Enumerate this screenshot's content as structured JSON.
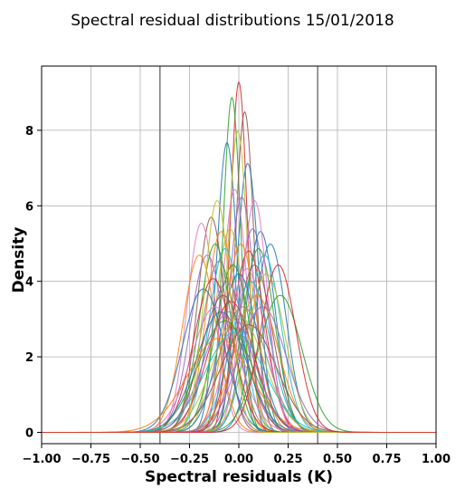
{
  "chart_data": {
    "type": "line",
    "title": "Spectral residual distributions 15/01/2018",
    "xlabel": "Spectral residuals (K)",
    "ylabel": "Density",
    "xlim": [
      -1.0,
      1.0
    ],
    "ylim": [
      -0.3,
      9.7
    ],
    "xticks": [
      "−1.00",
      "−0.75",
      "−0.50",
      "−0.25",
      "0.00",
      "0.25",
      "0.50",
      "0.75",
      "1.00"
    ],
    "yticks": [
      "0",
      "2",
      "4",
      "6",
      "8"
    ],
    "xtick_values": [
      -1.0,
      -0.75,
      -0.5,
      -0.25,
      0.0,
      0.25,
      0.5,
      0.75,
      1.0
    ],
    "ytick_values": [
      0,
      2,
      4,
      6,
      8
    ],
    "grid": true,
    "reference_lines_x": [
      -0.4,
      0.4
    ],
    "reference_line_color": "#808080",
    "series": [
      {
        "mu": 0.0,
        "sigma": 0.043,
        "color": "#d62728"
      },
      {
        "mu": -0.035,
        "sigma": 0.045,
        "color": "#2ca02c"
      },
      {
        "mu": 0.03,
        "sigma": 0.047,
        "color": "#8c564b"
      },
      {
        "mu": -0.06,
        "sigma": 0.052,
        "color": "#1f77b4"
      },
      {
        "mu": 0.045,
        "sigma": 0.056,
        "color": "#1f77b4"
      },
      {
        "mu": -0.005,
        "sigma": 0.05,
        "color": "#bcbd22"
      },
      {
        "mu": -0.02,
        "sigma": 0.062,
        "color": "#e377c2"
      },
      {
        "mu": 0.015,
        "sigma": 0.064,
        "color": "#9467bd"
      },
      {
        "mu": -0.14,
        "sigma": 0.07,
        "color": "#8c564b"
      },
      {
        "mu": -0.09,
        "sigma": 0.075,
        "color": "#ff7f0e"
      },
      {
        "mu": -0.045,
        "sigma": 0.074,
        "color": "#bcbd22"
      },
      {
        "mu": 0.07,
        "sigma": 0.074,
        "color": "#9467bd"
      },
      {
        "mu": 0.11,
        "sigma": 0.075,
        "color": "#1f77b4"
      },
      {
        "mu": 0.16,
        "sigma": 0.08,
        "color": "#1f77b4"
      },
      {
        "mu": -0.19,
        "sigma": 0.072,
        "color": "#e377c2"
      },
      {
        "mu": -0.12,
        "sigma": 0.08,
        "color": "#2ca02c"
      },
      {
        "mu": -0.07,
        "sigma": 0.082,
        "color": "#17becf"
      },
      {
        "mu": 0.01,
        "sigma": 0.08,
        "color": "#ff7f0e"
      },
      {
        "mu": 0.05,
        "sigma": 0.083,
        "color": "#d62728"
      },
      {
        "mu": 0.1,
        "sigma": 0.082,
        "color": "#2ca02c"
      },
      {
        "mu": 0.13,
        "sigma": 0.085,
        "color": "#17becf"
      },
      {
        "mu": -0.16,
        "sigma": 0.085,
        "color": "#9467bd"
      },
      {
        "mu": -0.1,
        "sigma": 0.088,
        "color": "#7f7f7f"
      },
      {
        "mu": 0.08,
        "sigma": 0.09,
        "color": "#8c564b"
      },
      {
        "mu": -0.03,
        "sigma": 0.09,
        "color": "#2ca02c"
      },
      {
        "mu": -0.2,
        "sigma": 0.085,
        "color": "#ff7f0e"
      },
      {
        "mu": 0.04,
        "sigma": 0.092,
        "color": "#e377c2"
      },
      {
        "mu": 0.0,
        "sigma": 0.095,
        "color": "#1f77b4"
      },
      {
        "mu": -0.13,
        "sigma": 0.098,
        "color": "#d62728"
      },
      {
        "mu": 0.14,
        "sigma": 0.095,
        "color": "#bcbd22"
      },
      {
        "mu": -0.06,
        "sigma": 0.1,
        "color": "#9467bd"
      },
      {
        "mu": 0.06,
        "sigma": 0.1,
        "color": "#17becf"
      },
      {
        "mu": -0.18,
        "sigma": 0.105,
        "color": "#1f77b4"
      },
      {
        "mu": -0.08,
        "sigma": 0.11,
        "color": "#8c564b"
      },
      {
        "mu": 0.09,
        "sigma": 0.11,
        "color": "#ff7f0e"
      },
      {
        "mu": 0.21,
        "sigma": 0.11,
        "color": "#2ca02c"
      },
      {
        "mu": -0.04,
        "sigma": 0.115,
        "color": "#d62728"
      },
      {
        "mu": -0.12,
        "sigma": 0.12,
        "color": "#e377c2"
      },
      {
        "mu": 0.02,
        "sigma": 0.12,
        "color": "#7f7f7f"
      },
      {
        "mu": -0.09,
        "sigma": 0.125,
        "color": "#1f77b4"
      },
      {
        "mu": 0.12,
        "sigma": 0.12,
        "color": "#9467bd"
      },
      {
        "mu": 0.0,
        "sigma": 0.13,
        "color": "#bcbd22"
      },
      {
        "mu": -0.07,
        "sigma": 0.135,
        "color": "#2ca02c"
      },
      {
        "mu": -0.02,
        "sigma": 0.15,
        "color": "#17becf"
      },
      {
        "mu": -0.1,
        "sigma": 0.16,
        "color": "#ff7f0e"
      },
      {
        "mu": 0.05,
        "sigma": 0.14,
        "color": "#8c564b"
      },
      {
        "mu": -0.05,
        "sigma": 0.125,
        "color": "#9467bd"
      },
      {
        "mu": 0.08,
        "sigma": 0.065,
        "color": "#e377c2"
      },
      {
        "mu": -0.11,
        "sigma": 0.065,
        "color": "#bcbd22"
      },
      {
        "mu": 0.2,
        "sigma": 0.09,
        "color": "#d62728"
      }
    ]
  }
}
